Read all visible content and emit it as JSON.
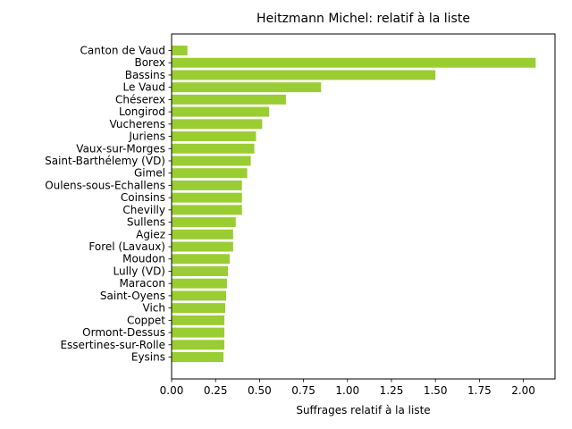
{
  "chart_data": {
    "type": "bar",
    "orientation": "horizontal",
    "title": "Heitzmann Michel: relatif à la liste",
    "xlabel": "Suffrages relatif à la liste",
    "ylabel": "",
    "bar_color": "#9acd32",
    "xlim": [
      0,
      2.18
    ],
    "xticks": [
      "0.00",
      "0.25",
      "0.50",
      "0.75",
      "1.00",
      "1.25",
      "1.50",
      "1.75",
      "2.00"
    ],
    "grid": false,
    "categories": [
      "Canton de Vaud",
      "Borex",
      "Bassins",
      "Le Vaud",
      "Chéserex",
      "Longirod",
      "Vucherens",
      "Juriens",
      "Vaux-sur-Morges",
      "Saint-Barthélemy (VD)",
      "Gimel",
      "Oulens-sous-Echallens",
      "Coinsins",
      "Chevilly",
      "Sullens",
      "Agiez",
      "Forel (Lavaux)",
      "Moudon",
      "Lully (VD)",
      "Maracon",
      "Saint-Oyens",
      "Vich",
      "Coppet",
      "Ormont-Dessus",
      "Essertines-sur-Rolle",
      "Eysins"
    ],
    "values": [
      0.09,
      2.07,
      1.5,
      0.85,
      0.65,
      0.555,
      0.515,
      0.48,
      0.47,
      0.45,
      0.43,
      0.4,
      0.4,
      0.4,
      0.365,
      0.35,
      0.35,
      0.33,
      0.32,
      0.315,
      0.31,
      0.305,
      0.3,
      0.3,
      0.3,
      0.295
    ]
  }
}
